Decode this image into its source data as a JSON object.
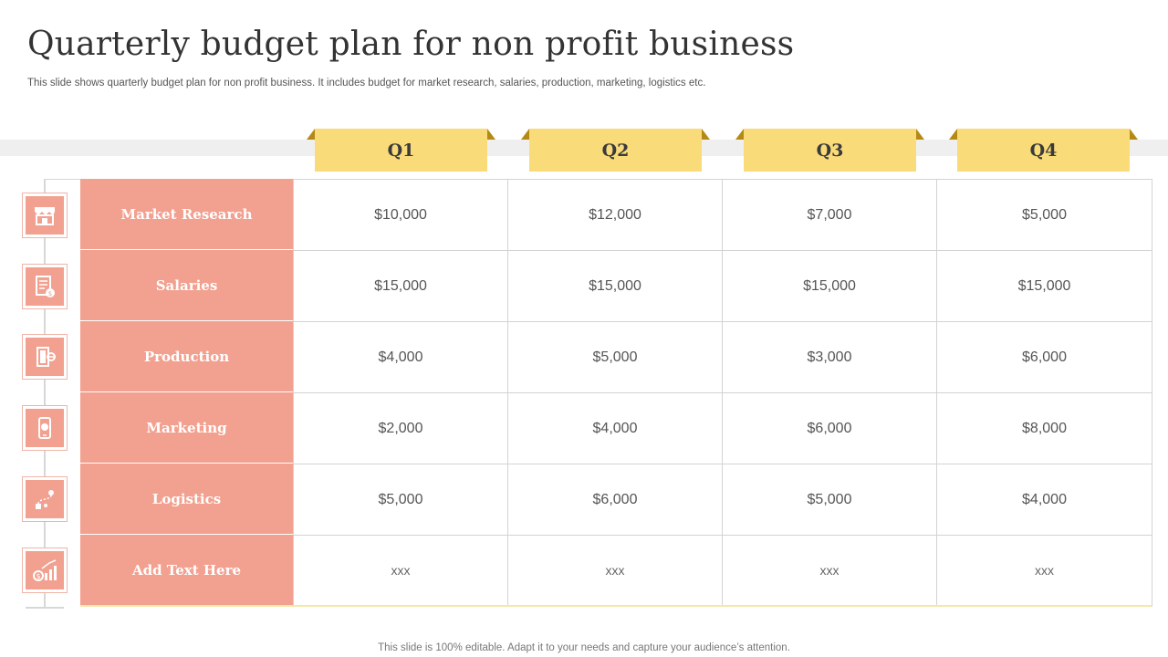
{
  "title": "Quarterly budget plan for non profit business",
  "subtitle": "This slide shows quarterly budget plan for non profit business. It includes budget for market research, salaries, production, marketing, logistics etc.",
  "quarters": [
    "Q1",
    "Q2",
    "Q3",
    "Q4"
  ],
  "rows": [
    {
      "label": "Market Research",
      "icon": "storefront-icon",
      "values": [
        "$10,000",
        "$12,000",
        "$7,000",
        "$5,000"
      ]
    },
    {
      "label": "Salaries",
      "icon": "payroll-document-icon",
      "values": [
        "$15,000",
        "$15,000",
        "$15,000",
        "$15,000"
      ]
    },
    {
      "label": "Production",
      "icon": "factory-door-icon",
      "values": [
        "$4,000",
        "$5,000",
        "$3,000",
        "$6,000"
      ]
    },
    {
      "label": "Marketing",
      "icon": "mobile-marketing-icon",
      "values": [
        "$2,000",
        "$4,000",
        "$6,000",
        "$8,000"
      ]
    },
    {
      "label": "Logistics",
      "icon": "route-icon",
      "values": [
        "$5,000",
        "$6,000",
        "$5,000",
        "$4,000"
      ]
    },
    {
      "label": "Add Text Here",
      "icon": "money-growth-chart-icon",
      "values": [
        "xxx",
        "xxx",
        "xxx",
        "xxx"
      ]
    }
  ],
  "footer": "This slide is 100% editable. Adapt it to your needs and capture your audience’s attention.",
  "colors": {
    "row_label": "#f2a08f",
    "quarter_header": "#fadb7a",
    "quarter_fold": "#b58a14"
  }
}
